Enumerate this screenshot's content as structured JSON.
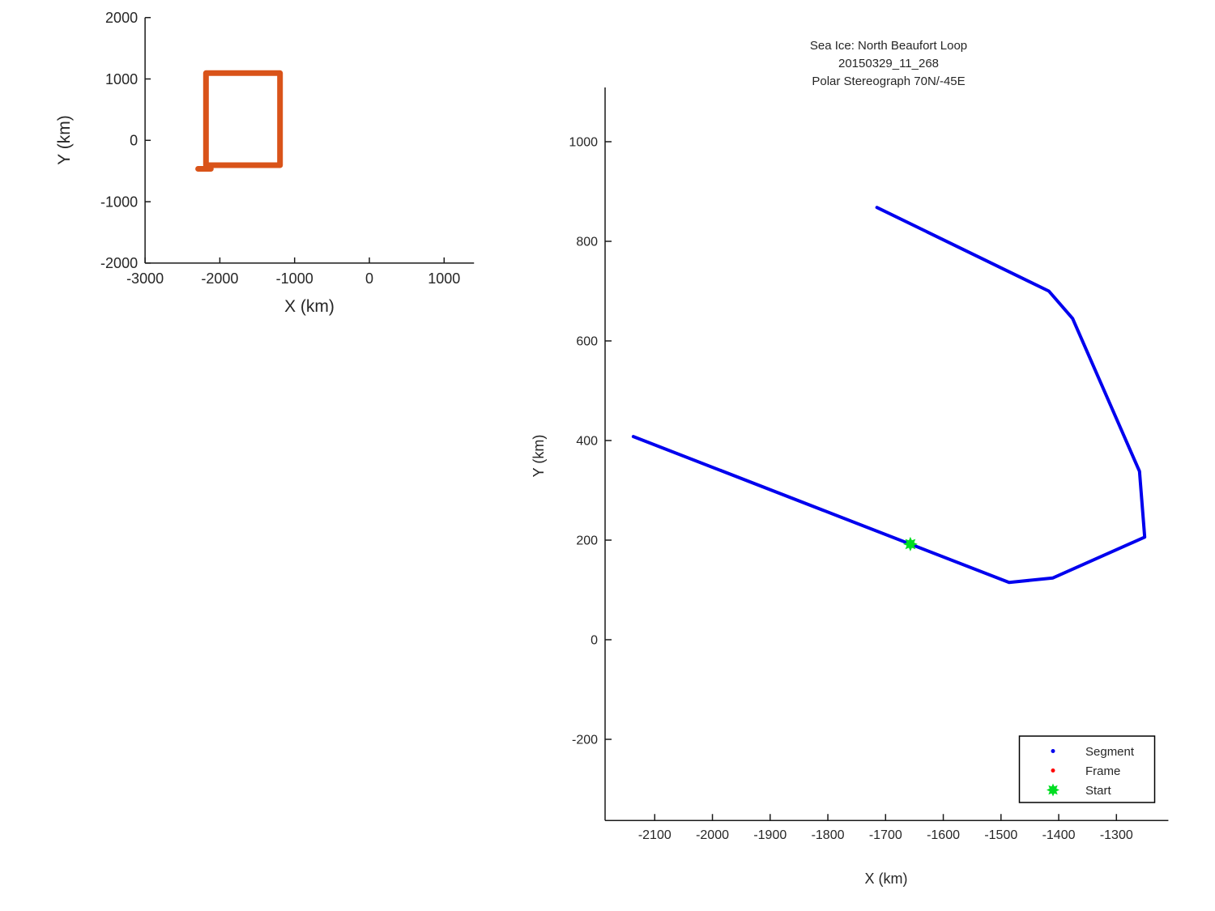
{
  "figure": {
    "background": "#ffffff",
    "axis_color": "#1a1a1a",
    "tick_label_color": "#262626"
  },
  "chart_data": [
    {
      "type": "line",
      "name": "overview-plot",
      "xlabel": "X (km)",
      "ylabel": "Y (km)",
      "xlim": [
        -3000,
        1400
      ],
      "ylim": [
        -2000,
        2000
      ],
      "x_ticks": [
        -3000,
        -2000,
        -1000,
        0,
        1000
      ],
      "y_ticks": [
        -2000,
        -1000,
        0,
        1000,
        2000
      ],
      "grid": false,
      "series": [
        {
          "name": "swath-outline",
          "color": "#d95319",
          "width": 7,
          "points": [
            [
              -2185,
              1095
            ],
            [
              -1195,
              1095
            ],
            [
              -1195,
              -405
            ],
            [
              -2185,
              -405
            ],
            [
              -2185,
              1095
            ]
          ]
        },
        {
          "name": "outline-closure-stub",
          "color": "#d95319",
          "width": 7,
          "points": [
            [
              -2290,
              -465
            ],
            [
              -2120,
              -465
            ]
          ]
        }
      ]
    },
    {
      "type": "line",
      "name": "main-plot",
      "title_lines": [
        "Sea Ice: North Beaufort Loop",
        "20150329_11_268",
        "Polar Stereograph 70N/-45E"
      ],
      "xlabel": "X (km)",
      "ylabel": "Y (km)",
      "xlim": [
        -2186,
        -1210
      ],
      "ylim": [
        -363,
        1109
      ],
      "x_ticks": [
        -2100,
        -2000,
        -1900,
        -1800,
        -1700,
        -1600,
        -1500,
        -1400,
        -1300
      ],
      "y_ticks": [
        -200,
        0,
        200,
        400,
        600,
        800,
        1000
      ],
      "grid": false,
      "series": [
        {
          "name": "Segment",
          "color": "#0000ee",
          "width": 4,
          "points": [
            [
              -2137,
              408
            ],
            [
              -1486,
              115
            ],
            [
              -1410,
              124
            ],
            [
              -1251,
              206
            ],
            [
              -1260,
              338
            ],
            [
              -1376,
              645
            ],
            [
              -1417,
              700
            ],
            [
              -1715,
              868
            ]
          ]
        },
        {
          "name": "Frame",
          "color": "#ff0000",
          "width": 1,
          "points": []
        },
        {
          "name": "Start",
          "color": "#00dd22",
          "marker": "star",
          "points": [
            [
              -1657,
              192
            ]
          ]
        }
      ],
      "legend": {
        "position": "bottom-right",
        "entries": [
          {
            "label": "Segment",
            "marker": "dot",
            "color": "#0000ee"
          },
          {
            "label": "Frame",
            "marker": "dot",
            "color": "#ff0000"
          },
          {
            "label": "Start",
            "marker": "star",
            "color": "#00dd22"
          }
        ]
      }
    }
  ]
}
